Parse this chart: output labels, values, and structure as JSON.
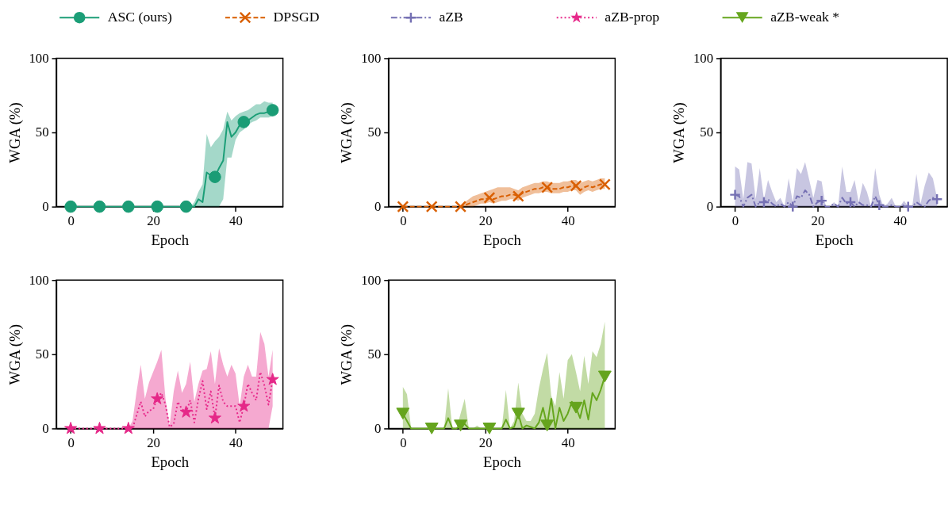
{
  "chart_data": [
    {
      "type": "line",
      "xlabel": "Epoch",
      "ylabel": "WGA (%)",
      "xlim": [
        -3.5,
        51.5
      ],
      "ylim": [
        0,
        100
      ],
      "xticks": [
        0,
        20,
        40
      ],
      "yticks": [
        0,
        50,
        100
      ],
      "grid": false,
      "legend": "top",
      "x": [
        0,
        1,
        2,
        3,
        4,
        5,
        6,
        7,
        8,
        9,
        10,
        11,
        12,
        13,
        14,
        15,
        16,
        17,
        18,
        19,
        20,
        21,
        22,
        23,
        24,
        25,
        26,
        27,
        28,
        29,
        30,
        31,
        32,
        33,
        34,
        35,
        36,
        37,
        38,
        39,
        40,
        41,
        42,
        43,
        44,
        45,
        46,
        47,
        48,
        49
      ],
      "series": [
        {
          "name": "ASC (ours)",
          "color": "#1b9e77",
          "line_style": "solid",
          "values": [
            0,
            0,
            0,
            0,
            0,
            0,
            0,
            0,
            0,
            0,
            0,
            0,
            0,
            0,
            0,
            0,
            0,
            0,
            0,
            0,
            0,
            0,
            0,
            0,
            0,
            0,
            0,
            0,
            0,
            0,
            0,
            5,
            3,
            23,
            21,
            20,
            26,
            31,
            57,
            47,
            50,
            55,
            57,
            58,
            60,
            62,
            63,
            63,
            64,
            65
          ],
          "lower": [
            0,
            0,
            0,
            0,
            0,
            0,
            0,
            0,
            0,
            0,
            0,
            0,
            0,
            0,
            0,
            0,
            0,
            0,
            0,
            0,
            0,
            0,
            0,
            0,
            0,
            0,
            0,
            0,
            0,
            0,
            0,
            0,
            0,
            0,
            0,
            0,
            0,
            5,
            33,
            33,
            45,
            50,
            52,
            55,
            57,
            58,
            60,
            60,
            60,
            61
          ],
          "upper": [
            0,
            0,
            0,
            0,
            0,
            0,
            0,
            0,
            0,
            0,
            0,
            0,
            0,
            0,
            0,
            0,
            0,
            0,
            0,
            0,
            0,
            0,
            0,
            0,
            0,
            0,
            0,
            0,
            0,
            0,
            3,
            10,
            15,
            49,
            40,
            44,
            47,
            52,
            64,
            58,
            61,
            63,
            64,
            65,
            67,
            69,
            69,
            71,
            70,
            70
          ]
        },
        {
          "type": "scatter",
          "color": "#1a9c75",
          "marker": "circle",
          "x": [
            0,
            7,
            14,
            21,
            28,
            35,
            42,
            49
          ],
          "values": [
            0,
            0,
            0,
            0,
            0,
            20,
            57,
            65
          ]
        }
      ]
    },
    {
      "type": "line",
      "xlabel": "Epoch",
      "ylabel": "WGA (%)",
      "xlim": [
        -3.5,
        51.5
      ],
      "ylim": [
        0,
        100
      ],
      "xticks": [
        0,
        20,
        40
      ],
      "yticks": [
        0,
        50,
        100
      ],
      "grid": false,
      "legend": "top",
      "x": [
        0,
        1,
        2,
        3,
        4,
        5,
        6,
        7,
        8,
        9,
        10,
        11,
        12,
        13,
        14,
        15,
        16,
        17,
        18,
        19,
        20,
        21,
        22,
        23,
        24,
        25,
        26,
        27,
        28,
        29,
        30,
        31,
        32,
        33,
        34,
        35,
        36,
        37,
        38,
        39,
        40,
        41,
        42,
        43,
        44,
        45,
        46,
        47,
        48,
        49
      ],
      "series": [
        {
          "name": "DPSGD",
          "color": "#d95f02",
          "line_style": "dashed",
          "values": [
            0,
            0,
            0,
            0,
            0,
            0,
            0,
            0,
            0,
            0,
            0,
            0,
            0,
            0,
            0,
            1,
            2,
            3,
            4,
            5,
            5,
            6,
            5,
            6,
            7,
            7,
            8,
            8,
            7,
            9,
            10,
            11,
            12,
            12,
            13,
            13,
            12,
            12,
            12,
            13,
            13,
            14,
            14,
            11,
            13,
            14,
            13,
            14,
            15,
            15
          ],
          "lower": [
            0,
            0,
            0,
            0,
            0,
            0,
            0,
            0,
            0,
            0,
            0,
            0,
            0,
            0,
            0,
            0,
            0,
            0,
            1,
            2,
            2,
            3,
            2,
            3,
            4,
            4,
            5,
            5,
            4,
            6,
            7,
            8,
            9,
            9,
            10,
            10,
            9,
            9,
            9,
            10,
            10,
            11,
            11,
            8,
            10,
            11,
            10,
            11,
            12,
            12
          ],
          "upper": [
            0,
            0,
            0,
            0,
            0,
            0,
            0,
            0,
            0,
            0,
            0,
            0,
            0,
            0,
            0,
            3,
            5,
            7,
            8,
            9,
            10,
            11,
            12,
            13,
            13,
            13,
            13,
            12,
            11,
            13,
            14,
            15,
            16,
            16,
            17,
            17,
            16,
            16,
            16,
            17,
            17,
            18,
            18,
            16,
            17,
            18,
            17,
            18,
            19,
            19
          ]
        },
        {
          "type": "scatter",
          "color": "#d95f02",
          "marker": "x",
          "x": [
            0,
            7,
            14,
            21,
            28,
            35,
            42,
            49
          ],
          "values": [
            0,
            0,
            0,
            6,
            7,
            13,
            14,
            15
          ]
        }
      ]
    },
    {
      "type": "line",
      "xlabel": "Epoch",
      "ylabel": "WGA (%)",
      "xlim": [
        -3.5,
        51.5
      ],
      "ylim": [
        0,
        100
      ],
      "xticks": [
        0,
        20,
        40
      ],
      "yticks": [
        0,
        50,
        100
      ],
      "grid": false,
      "legend": "top",
      "x": [
        0,
        1,
        2,
        3,
        4,
        5,
        6,
        7,
        8,
        9,
        10,
        11,
        12,
        13,
        14,
        15,
        16,
        17,
        18,
        19,
        20,
        21,
        22,
        23,
        24,
        25,
        26,
        27,
        28,
        29,
        30,
        31,
        32,
        33,
        34,
        35,
        36,
        37,
        38,
        39,
        40,
        41,
        42,
        43,
        44,
        45,
        46,
        47,
        48,
        49
      ],
      "series": [
        {
          "name": "aZB",
          "color": "#7570b3",
          "line_style": "dashdot",
          "values": [
            8,
            7,
            0,
            6,
            8,
            0,
            3,
            3,
            5,
            2,
            0,
            2,
            0,
            3,
            0,
            7,
            6,
            11,
            8,
            0,
            3,
            4,
            0,
            0,
            2,
            0,
            6,
            2,
            3,
            0,
            3,
            1,
            1,
            0,
            7,
            1,
            0,
            0,
            1,
            0,
            0,
            1,
            0,
            0,
            3,
            1,
            0,
            4,
            6,
            5
          ],
          "lower": [
            0,
            0,
            0,
            0,
            0,
            0,
            0,
            0,
            0,
            0,
            0,
            0,
            0,
            0,
            0,
            0,
            0,
            0,
            0,
            0,
            0,
            0,
            0,
            0,
            0,
            0,
            0,
            0,
            0,
            0,
            0,
            0,
            0,
            0,
            0,
            0,
            0,
            0,
            0,
            0,
            0,
            0,
            0,
            0,
            0,
            0,
            0,
            0,
            0,
            0
          ],
          "upper": [
            27,
            25,
            5,
            30,
            29,
            5,
            26,
            5,
            18,
            10,
            3,
            6,
            0,
            19,
            3,
            26,
            22,
            30,
            18,
            6,
            18,
            17,
            0,
            0,
            3,
            0,
            27,
            10,
            10,
            18,
            3,
            16,
            10,
            0,
            26,
            8,
            0,
            2,
            6,
            0,
            0,
            4,
            0,
            0,
            22,
            2,
            14,
            23,
            19,
            6
          ]
        },
        {
          "type": "scatter",
          "color": "#7570b3",
          "marker": "cross",
          "x": [
            0,
            7,
            14,
            21,
            28,
            35,
            42,
            49
          ],
          "values": [
            8,
            3,
            0,
            4,
            3,
            1,
            0,
            5
          ]
        }
      ]
    },
    {
      "type": "line",
      "xlabel": "Epoch",
      "ylabel": "WGA (%)",
      "xlim": [
        -3.5,
        51.5
      ],
      "ylim": [
        0,
        100
      ],
      "xticks": [
        0,
        20,
        40
      ],
      "yticks": [
        0,
        50,
        100
      ],
      "grid": false,
      "legend": "top",
      "x": [
        0,
        1,
        2,
        3,
        4,
        5,
        6,
        7,
        8,
        9,
        10,
        11,
        12,
        13,
        14,
        15,
        16,
        17,
        18,
        19,
        20,
        21,
        22,
        23,
        24,
        25,
        26,
        27,
        28,
        29,
        30,
        31,
        32,
        33,
        34,
        35,
        36,
        37,
        38,
        39,
        40,
        41,
        42,
        43,
        44,
        45,
        46,
        47,
        48,
        49
      ],
      "series": [
        {
          "name": "aZB-prop",
          "color": "#e7298a",
          "line_style": "dotted",
          "values": [
            0,
            0,
            0,
            0,
            0,
            0,
            0,
            0,
            0,
            0,
            0,
            0,
            0,
            0,
            0,
            0,
            9,
            18,
            8,
            12,
            13,
            20,
            24,
            16,
            1,
            3,
            18,
            13,
            11,
            19,
            4,
            20,
            32,
            13,
            25,
            7,
            29,
            18,
            15,
            15,
            15,
            4,
            15,
            30,
            24,
            19,
            38,
            29,
            16,
            33
          ],
          "lower": [
            0,
            0,
            0,
            0,
            0,
            0,
            0,
            0,
            0,
            0,
            0,
            0,
            0,
            0,
            0,
            0,
            0,
            0,
            0,
            0,
            0,
            0,
            0,
            0,
            0,
            0,
            0,
            0,
            0,
            0,
            0,
            0,
            0,
            0,
            0,
            0,
            0,
            0,
            0,
            0,
            0,
            0,
            0,
            0,
            0,
            0,
            0,
            0,
            0,
            15
          ],
          "upper": [
            0,
            0,
            0,
            0,
            0,
            0,
            0,
            0,
            0,
            0,
            0,
            0,
            0,
            0,
            0,
            5,
            25,
            43,
            20,
            31,
            38,
            45,
            53,
            20,
            2,
            25,
            39,
            24,
            30,
            45,
            18,
            30,
            39,
            40,
            52,
            30,
            54,
            43,
            35,
            43,
            37,
            15,
            35,
            43,
            35,
            35,
            65,
            57,
            35,
            53
          ]
        },
        {
          "type": "scatter",
          "color": "#e52888",
          "marker": "star",
          "x": [
            0,
            7,
            14,
            21,
            28,
            35,
            42,
            49
          ],
          "values": [
            0,
            0,
            0,
            20,
            11,
            7,
            15,
            33
          ]
        }
      ]
    },
    {
      "type": "line",
      "xlabel": "Epoch",
      "ylabel": "WGA (%)",
      "xlim": [
        -3.5,
        51.5
      ],
      "ylim": [
        0,
        100
      ],
      "xticks": [
        0,
        20,
        40
      ],
      "yticks": [
        0,
        50,
        100
      ],
      "grid": false,
      "legend": "top",
      "x": [
        0,
        1,
        2,
        3,
        4,
        5,
        6,
        7,
        8,
        9,
        10,
        11,
        12,
        13,
        14,
        15,
        16,
        17,
        18,
        19,
        20,
        21,
        22,
        23,
        24,
        25,
        26,
        27,
        28,
        29,
        30,
        31,
        32,
        33,
        34,
        35,
        36,
        37,
        38,
        39,
        40,
        41,
        42,
        43,
        44,
        45,
        46,
        47,
        48,
        49
      ],
      "series": [
        {
          "name": "aZB-weak *",
          "color": "#66a61e",
          "line_style": "solid",
          "values": [
            10,
            5,
            0,
            0,
            0,
            0,
            0,
            0,
            0,
            0,
            0,
            7,
            0,
            0,
            2,
            3,
            0,
            0,
            0,
            0,
            0,
            0,
            0,
            0,
            0,
            6,
            0,
            1,
            10,
            0,
            2,
            1,
            0,
            4,
            14,
            2,
            20,
            0,
            14,
            5,
            10,
            18,
            14,
            7,
            19,
            6,
            24,
            19,
            26,
            35
          ],
          "lower": [
            0,
            0,
            0,
            0,
            0,
            0,
            0,
            0,
            0,
            0,
            0,
            0,
            0,
            0,
            0,
            0,
            0,
            0,
            0,
            0,
            0,
            0,
            0,
            0,
            0,
            0,
            0,
            0,
            0,
            0,
            0,
            0,
            0,
            0,
            0,
            0,
            0,
            0,
            0,
            0,
            0,
            0,
            0,
            0,
            0,
            0,
            0,
            0,
            0,
            0
          ],
          "upper": [
            28,
            23,
            0,
            0,
            0,
            0,
            0,
            0,
            0,
            0,
            0,
            27,
            0,
            0,
            10,
            20,
            0,
            0,
            2,
            0,
            0,
            0,
            0,
            0,
            0,
            26,
            0,
            5,
            31,
            10,
            5,
            5,
            10,
            27,
            40,
            51,
            22,
            15,
            38,
            20,
            46,
            50,
            38,
            25,
            49,
            30,
            52,
            48,
            57,
            72
          ]
        },
        {
          "type": "scatter",
          "color": "#65a41d",
          "marker": "triangle",
          "x": [
            0,
            7,
            14,
            21,
            28,
            35,
            42,
            49
          ],
          "values": [
            10,
            0,
            2,
            0,
            10,
            2,
            14,
            35
          ]
        }
      ]
    }
  ]
}
